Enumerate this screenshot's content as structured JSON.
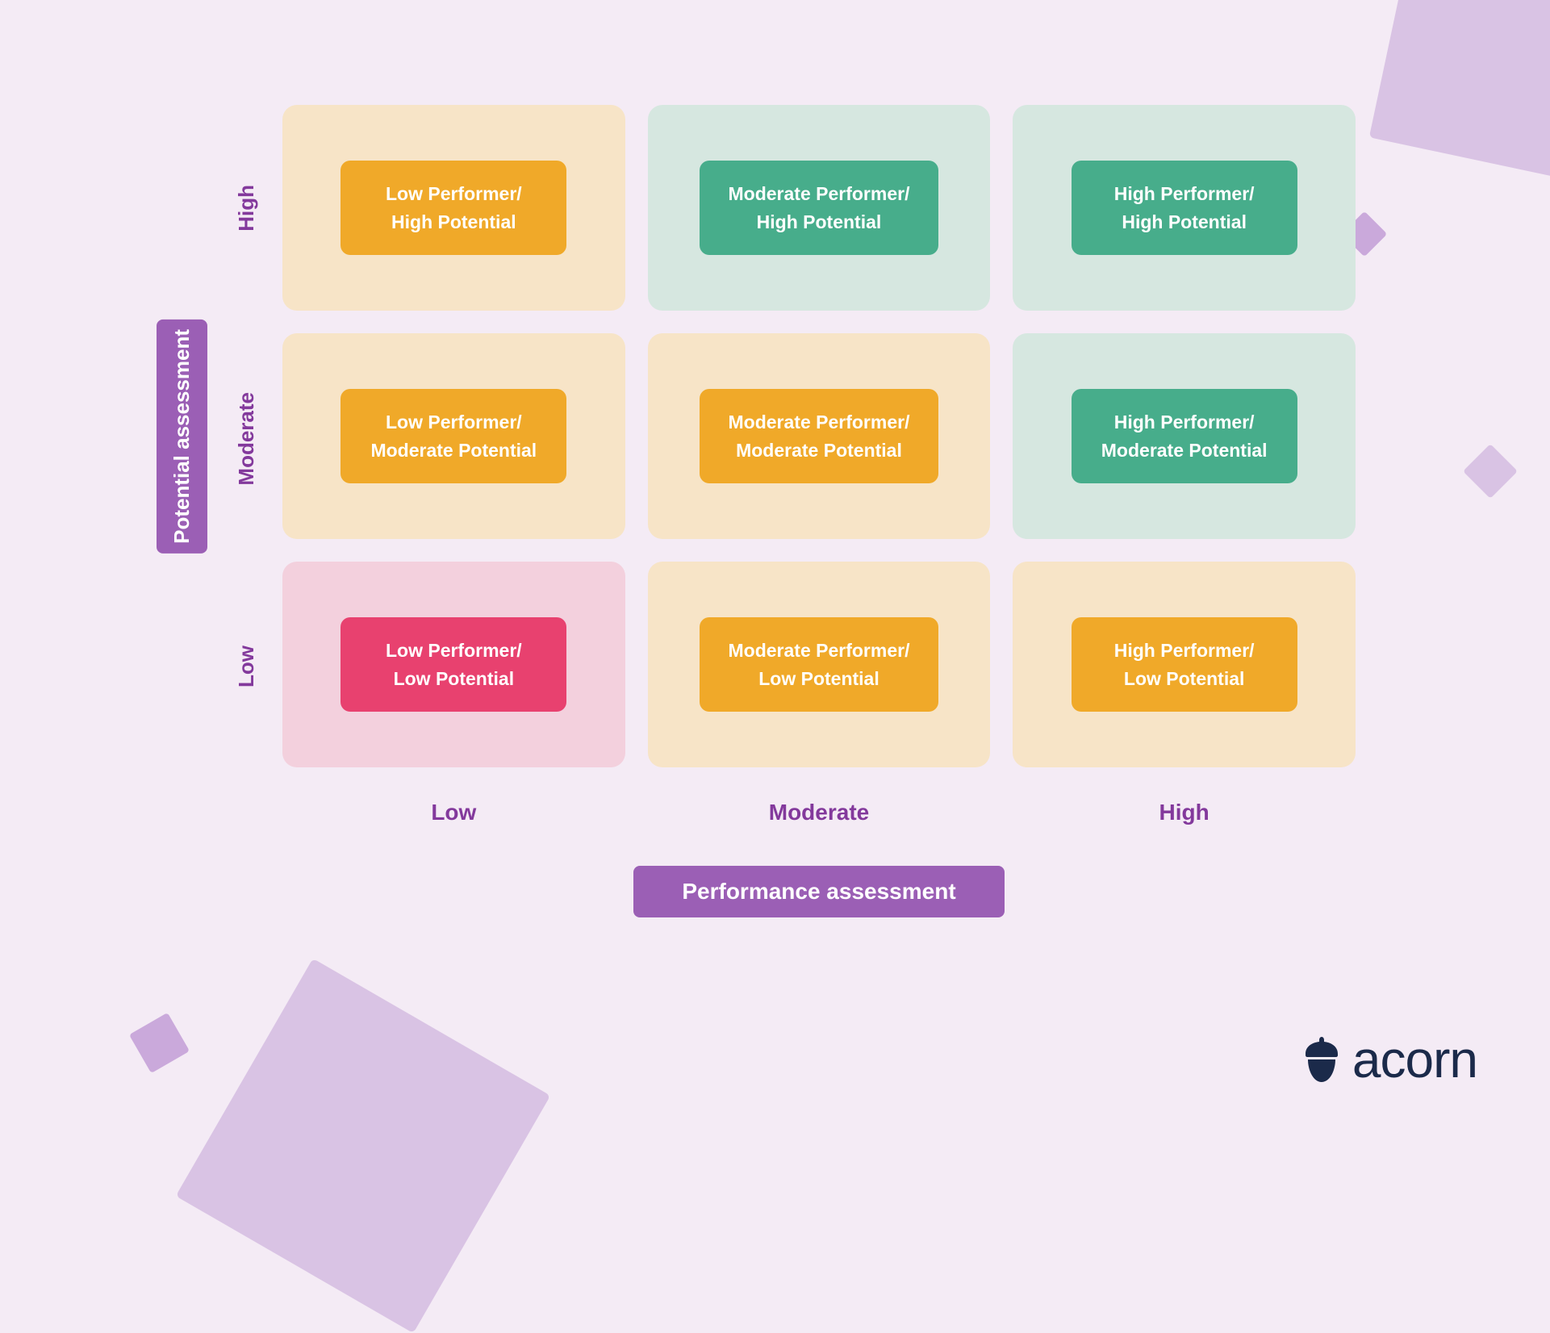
{
  "diagram": {
    "type": "matrix-grid",
    "background_color": "#f4ebf5",
    "axis_title_bg": "#9b5fb5",
    "axis_title_text_color": "#ffffff",
    "tick_text_color": "#83399c",
    "cell_border_radius": 18,
    "inner_border_radius": 12,
    "cell_gap": 28,
    "y_axis": {
      "title": "Potential assessment",
      "ticks": [
        "High",
        "Moderate",
        "Low"
      ]
    },
    "x_axis": {
      "title": "Performance assessment",
      "ticks": [
        "Low",
        "Moderate",
        "High"
      ]
    },
    "cells": [
      {
        "row": 0,
        "col": 0,
        "line1": "Low Performer/",
        "line2": "High Potential",
        "bg": "#f7e4c7",
        "inner_bg": "#f0a929"
      },
      {
        "row": 0,
        "col": 1,
        "line1": "Moderate Performer/",
        "line2": "High Potential",
        "bg": "#d6e7e0",
        "inner_bg": "#47ad8b"
      },
      {
        "row": 0,
        "col": 2,
        "line1": "High Performer/",
        "line2": "High Potential",
        "bg": "#d6e7e0",
        "inner_bg": "#47ad8b"
      },
      {
        "row": 1,
        "col": 0,
        "line1": "Low Performer/",
        "line2": "Moderate Potential",
        "bg": "#f7e4c7",
        "inner_bg": "#f0a929"
      },
      {
        "row": 1,
        "col": 1,
        "line1": "Moderate Performer/",
        "line2": "Moderate Potential",
        "bg": "#f7e4c7",
        "inner_bg": "#f0a929"
      },
      {
        "row": 1,
        "col": 2,
        "line1": "High Performer/",
        "line2": "Moderate Potential",
        "bg": "#d6e7e0",
        "inner_bg": "#47ad8b"
      },
      {
        "row": 2,
        "col": 0,
        "line1": "Low Performer/",
        "line2": "Low Potential",
        "bg": "#f3d0dd",
        "inner_bg": "#e8416f"
      },
      {
        "row": 2,
        "col": 1,
        "line1": "Moderate Performer/",
        "line2": "Low Potential",
        "bg": "#f7e4c7",
        "inner_bg": "#f0a929"
      },
      {
        "row": 2,
        "col": 2,
        "line1": "High Performer/",
        "line2": "Low Potential",
        "bg": "#f7e4c7",
        "inner_bg": "#f0a929"
      }
    ]
  },
  "logo": {
    "text": "acorn",
    "color": "#1b2a4a"
  },
  "decorations": {
    "shape_color_light": "#d9c3e4",
    "shape_color_mid": "#caa9db"
  }
}
